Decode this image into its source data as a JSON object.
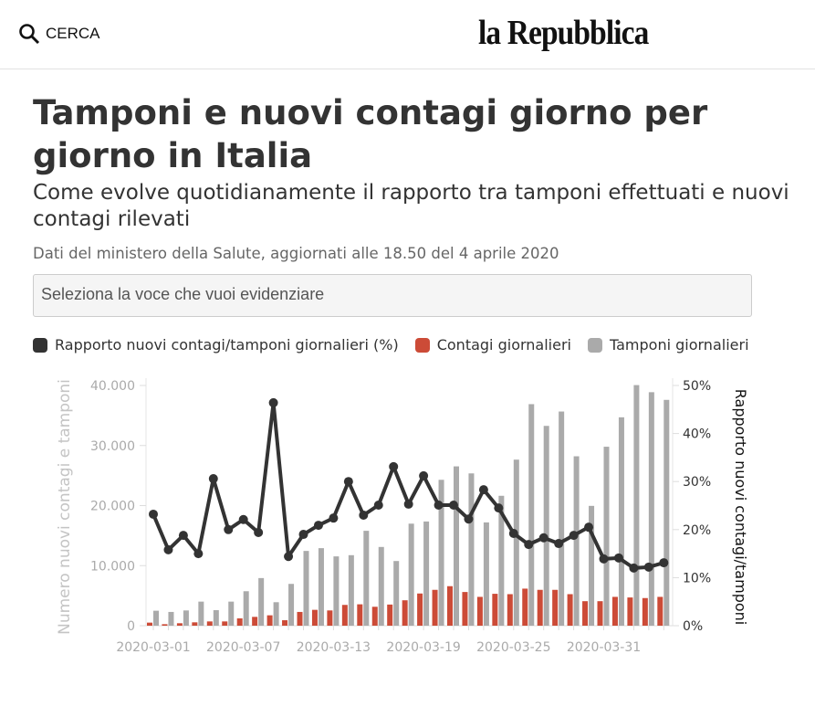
{
  "header": {
    "search_label": "CERCA",
    "logo": "la Repubblica"
  },
  "title": "Tamponi e nuovi contagi giorno per giorno in Italia",
  "subtitle": "Come evolve quotidianamente il rapporto tra tamponi effettuati e nuovi contagi rilevati",
  "source": "Dati del ministero della Salute, aggiornati alle 18.50 del 4 aprile 2020",
  "select": {
    "placeholder": "Seleziona la voce che vuoi evidenziare"
  },
  "colors": {
    "ratio": "#333333",
    "contagi": "#cc4b37",
    "tamponi": "#aaaaaa"
  },
  "chart_data": {
    "type": "bar+line",
    "legend": [
      "Rapporto nuovi contagi/tamponi giornalieri (%)",
      "Contagi giornalieri",
      "Tamponi giornalieri"
    ],
    "legend_position": "top-left",
    "ylabel_left": "Numero nuovi contagi e tamponi",
    "ylabel_right": "Rapporto nuovi contagi/tamponi",
    "ylim_left": [
      0,
      40000
    ],
    "ylim_right": [
      0,
      50
    ],
    "yticks_left": [
      "0",
      "10.000",
      "20.000",
      "30.000",
      "40.000"
    ],
    "yticks_right": [
      "0%",
      "10%",
      "20%",
      "30%",
      "40%",
      "50%"
    ],
    "xtick_labels": [
      "2020-03-01",
      "2020-03-07",
      "2020-03-13",
      "2020-03-19",
      "2020-03-25",
      "2020-03-31"
    ],
    "x": [
      "2020-03-01",
      "2020-03-02",
      "2020-03-03",
      "2020-03-04",
      "2020-03-05",
      "2020-03-06",
      "2020-03-07",
      "2020-03-08",
      "2020-03-09",
      "2020-03-10",
      "2020-03-11",
      "2020-03-12",
      "2020-03-13",
      "2020-03-14",
      "2020-03-15",
      "2020-03-16",
      "2020-03-17",
      "2020-03-18",
      "2020-03-19",
      "2020-03-20",
      "2020-03-21",
      "2020-03-22",
      "2020-03-23",
      "2020-03-24",
      "2020-03-25",
      "2020-03-26",
      "2020-03-27",
      "2020-03-28",
      "2020-03-29",
      "2020-03-30",
      "2020-03-31",
      "2020-04-01",
      "2020-04-02",
      "2020-04-03",
      "2020-04-04"
    ],
    "series": [
      {
        "name": "Contagi giornalieri",
        "type": "bar",
        "axis": "left",
        "values": [
          510,
          250,
          410,
          560,
          710,
          710,
          1220,
          1470,
          1730,
          910,
          2290,
          2640,
          2540,
          3460,
          3560,
          3150,
          3520,
          4230,
          5360,
          5970,
          6580,
          5610,
          4800,
          5310,
          5250,
          6170,
          5970,
          5970,
          5250,
          4080,
          4080,
          4800,
          4700,
          4600,
          4800
        ]
      },
      {
        "name": "Tamponi giornalieri",
        "type": "bar",
        "axis": "left",
        "values": [
          2490,
          2290,
          2540,
          4010,
          2590,
          4010,
          5740,
          7930,
          3910,
          6960,
          12450,
          12910,
          11540,
          11740,
          15800,
          13110,
          10770,
          16990,
          17350,
          24290,
          26530,
          25360,
          17200,
          21630,
          27650,
          36890,
          33270,
          35660,
          28210,
          19950,
          29800,
          34700,
          40060,
          38880,
          37600
        ]
      },
      {
        "name": "Rapporto nuovi contagi/tamponi giornalieri (%)",
        "type": "line",
        "axis": "right",
        "values": [
          23.2,
          15.8,
          18.8,
          15.0,
          30.6,
          20.0,
          22.1,
          19.4,
          46.4,
          14.4,
          19.0,
          20.9,
          22.4,
          30.0,
          23.0,
          25.1,
          33.1,
          25.3,
          31.2,
          25.1,
          25.1,
          22.2,
          28.3,
          24.5,
          19.2,
          16.9,
          18.3,
          17.1,
          18.8,
          20.5,
          13.9,
          14.1,
          12.0,
          12.2,
          13.1
        ]
      }
    ]
  }
}
